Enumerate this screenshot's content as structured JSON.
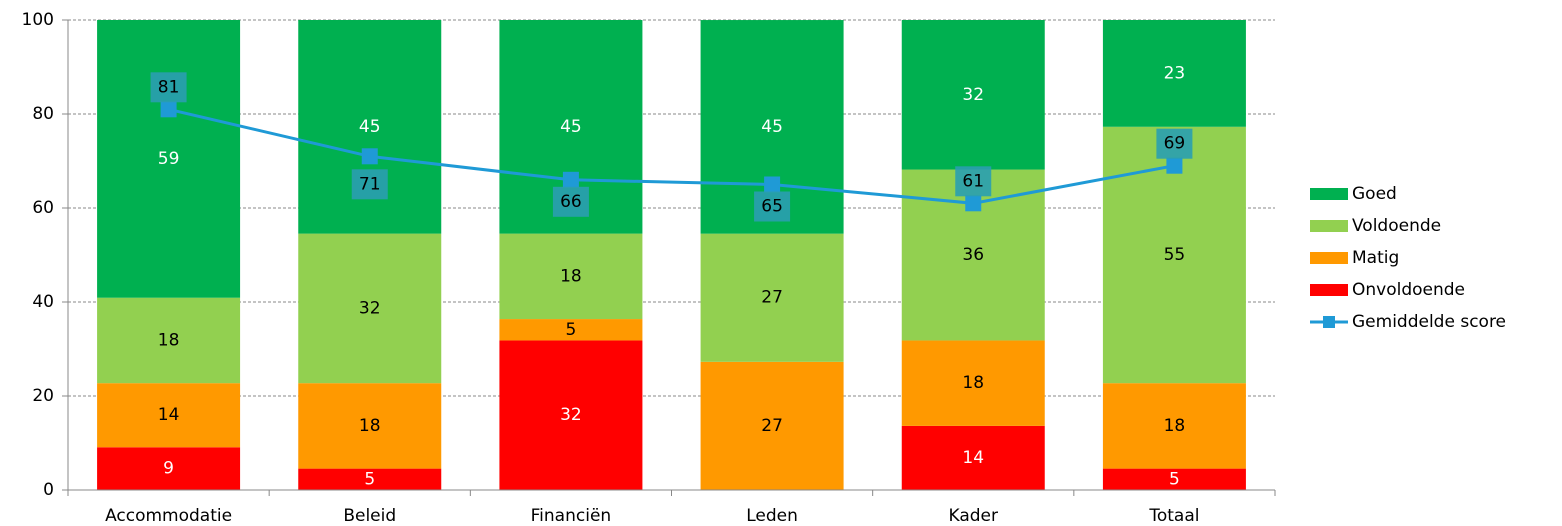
{
  "chart_data": {
    "type": "stacked_bar_line",
    "categories": [
      "Accommodatie",
      "Beleid",
      "Financiën",
      "Leden",
      "Kader",
      "Totaal"
    ],
    "series": [
      {
        "name": "Onvoldoende",
        "color": "#ff0000",
        "values": [
          9.09,
          4.55,
          31.82,
          0,
          13.64,
          4.55
        ],
        "value_labels": [
          "9",
          "5",
          "32",
          null,
          "14",
          "5"
        ]
      },
      {
        "name": "Matig",
        "color": "#ff9900",
        "values": [
          13.64,
          18.18,
          4.55,
          27.27,
          18.18,
          18.18
        ],
        "value_labels": [
          "14",
          "18",
          "5",
          "27",
          "18",
          "18"
        ]
      },
      {
        "name": "Voldoende",
        "color": "#92d050",
        "values": [
          18.18,
          31.82,
          18.18,
          27.27,
          36.36,
          54.55
        ],
        "value_labels": [
          "18",
          "32",
          "18",
          "27",
          "36",
          "55"
        ]
      },
      {
        "name": "Goed",
        "color": "#00b050",
        "values": [
          59.09,
          45.45,
          45.45,
          45.45,
          31.82,
          22.73
        ],
        "value_labels": [
          "59",
          "45",
          "45",
          "45",
          "32",
          "23"
        ]
      }
    ],
    "line_series": {
      "name": "Gemiddelde score",
      "color": "#1f9ad6",
      "values": [
        81,
        71,
        66,
        65,
        61,
        69
      ]
    },
    "ylim": [
      0,
      100
    ],
    "yticks": [
      0,
      20,
      40,
      60,
      80,
      100
    ],
    "grid": true,
    "legend": "right"
  }
}
